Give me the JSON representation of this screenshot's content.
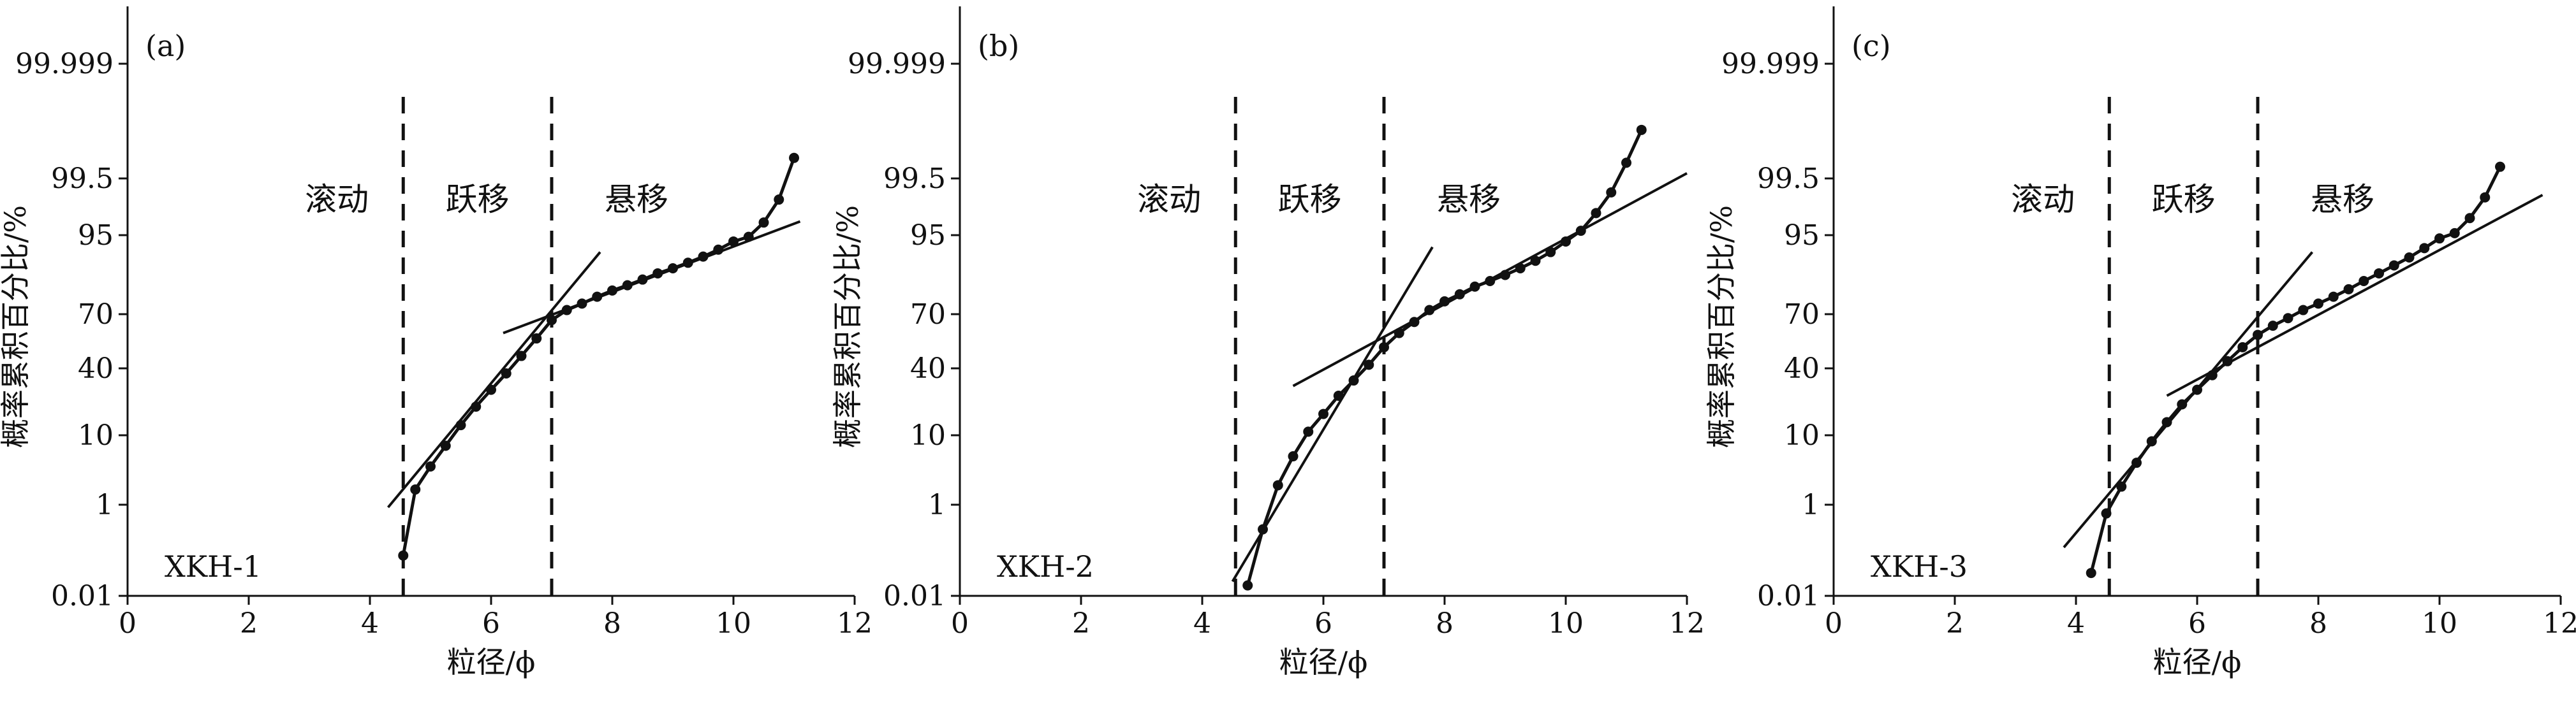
{
  "figure": {
    "colors": {
      "ink": "#111111",
      "background": "#ffffff"
    }
  },
  "chart_data": [
    {
      "type": "line",
      "panel_label": "(a)",
      "sample": "XKH-1",
      "xlabel": "粒径/ϕ",
      "ylabel": "概率累积百分比/%",
      "xlim": [
        0,
        12
      ],
      "xticks": [
        0,
        2,
        4,
        6,
        8,
        10,
        12
      ],
      "yscale": "probability",
      "yticks": [
        "0.01",
        "1",
        "10",
        "40",
        "70",
        "95",
        "99.5",
        "99.999"
      ],
      "zones": [
        "滚动",
        "跃移",
        "悬移"
      ],
      "boundaries": [
        4.55,
        7.0
      ],
      "series": [
        {
          "values": [
            [
              4.55,
              0.1
            ],
            [
              4.75,
              1.8
            ],
            [
              5.0,
              4
            ],
            [
              5.25,
              7.5
            ],
            [
              5.5,
              13
            ],
            [
              5.75,
              20
            ],
            [
              6.0,
              28
            ],
            [
              6.25,
              37
            ],
            [
              6.5,
              47
            ],
            [
              6.75,
              57
            ],
            [
              7.0,
              67
            ],
            [
              7.25,
              72
            ],
            [
              7.5,
              75
            ],
            [
              7.75,
              78
            ],
            [
              8.0,
              80.5
            ],
            [
              8.25,
              82.5
            ],
            [
              8.5,
              84.5
            ],
            [
              8.75,
              86.5
            ],
            [
              9.0,
              88
            ],
            [
              9.25,
              89.5
            ],
            [
              9.5,
              91
            ],
            [
              9.75,
              92.5
            ],
            [
              10.0,
              94
            ],
            [
              10.25,
              95.5
            ],
            [
              10.5,
              97.2
            ],
            [
              10.75,
              98.8
            ],
            [
              11.0,
              99.8
            ]
          ]
        }
      ],
      "fit_lines": [
        {
          "x": [
            4.3,
            7.8
          ],
          "y": [
            0.9,
            92
          ]
        },
        {
          "x": [
            6.2,
            11.1
          ],
          "y": [
            60,
            97.3
          ]
        }
      ]
    },
    {
      "type": "line",
      "panel_label": "(b)",
      "sample": "XKH-2",
      "xlabel": "粒径/ϕ",
      "ylabel": "概率累积百分比/%",
      "xlim": [
        0,
        12
      ],
      "xticks": [
        0,
        2,
        4,
        6,
        8,
        10,
        12
      ],
      "yscale": "probability",
      "yticks": [
        "0.01",
        "1",
        "10",
        "40",
        "70",
        "95",
        "99.5",
        "99.999"
      ],
      "zones": [
        "滚动",
        "跃移",
        "悬移"
      ],
      "boundaries": [
        4.55,
        7.0
      ],
      "series": [
        {
          "values": [
            [
              4.75,
              0.02
            ],
            [
              5.0,
              0.35
            ],
            [
              5.25,
              2.1
            ],
            [
              5.5,
              5.5
            ],
            [
              5.75,
              11
            ],
            [
              6.0,
              17
            ],
            [
              6.25,
              25
            ],
            [
              6.5,
              33
            ],
            [
              6.75,
              42
            ],
            [
              7.0,
              52
            ],
            [
              7.25,
              60
            ],
            [
              7.5,
              66
            ],
            [
              7.75,
              72
            ],
            [
              8.0,
              76
            ],
            [
              8.25,
              79
            ],
            [
              8.5,
              82
            ],
            [
              8.75,
              84
            ],
            [
              9.0,
              86
            ],
            [
              9.25,
              88
            ],
            [
              9.5,
              90
            ],
            [
              9.75,
              92
            ],
            [
              10.0,
              94
            ],
            [
              10.25,
              96.3
            ],
            [
              10.5,
              98
            ],
            [
              10.75,
              99.1
            ],
            [
              11.0,
              99.75
            ],
            [
              11.25,
              99.95
            ]
          ]
        }
      ],
      "fit_lines": [
        {
          "x": [
            4.5,
            7.8
          ],
          "y": [
            0.025,
            93
          ]
        },
        {
          "x": [
            5.5,
            12.0
          ],
          "y": [
            30,
            99.6
          ]
        }
      ]
    },
    {
      "type": "line",
      "panel_label": "(c)",
      "sample": "XKH-3",
      "xlabel": "粒径/ϕ",
      "ylabel": "概率累积百分比/%",
      "xlim": [
        0,
        12
      ],
      "xticks": [
        0,
        2,
        4,
        6,
        8,
        10,
        12
      ],
      "yscale": "probability",
      "yticks": [
        "0.01",
        "1",
        "10",
        "40",
        "70",
        "95",
        "99.5",
        "99.999"
      ],
      "zones": [
        "滚动",
        "跃移",
        "悬移"
      ],
      "boundaries": [
        4.55,
        7.0
      ],
      "series": [
        {
          "values": [
            [
              4.25,
              0.04
            ],
            [
              4.5,
              0.7
            ],
            [
              4.75,
              2
            ],
            [
              5.0,
              4.5
            ],
            [
              5.25,
              8.5
            ],
            [
              5.5,
              14
            ],
            [
              5.75,
              21
            ],
            [
              6.0,
              28
            ],
            [
              6.25,
              36
            ],
            [
              6.5,
              44
            ],
            [
              6.75,
              52
            ],
            [
              7.0,
              59
            ],
            [
              7.25,
              64
            ],
            [
              7.5,
              68
            ],
            [
              7.75,
              72
            ],
            [
              8.0,
              75
            ],
            [
              8.25,
              78
            ],
            [
              8.5,
              81
            ],
            [
              8.75,
              84
            ],
            [
              9.0,
              86.5
            ],
            [
              9.25,
              88.8
            ],
            [
              9.5,
              90.8
            ],
            [
              9.75,
              92.8
            ],
            [
              10.0,
              94.5
            ],
            [
              10.25,
              96
            ],
            [
              10.5,
              97.6
            ],
            [
              10.75,
              98.9
            ],
            [
              11.0,
              99.7
            ]
          ]
        }
      ],
      "fit_lines": [
        {
          "x": [
            3.8,
            7.9
          ],
          "y": [
            0.15,
            92
          ]
        },
        {
          "x": [
            5.5,
            11.7
          ],
          "y": [
            25,
            99.0
          ]
        }
      ]
    }
  ]
}
